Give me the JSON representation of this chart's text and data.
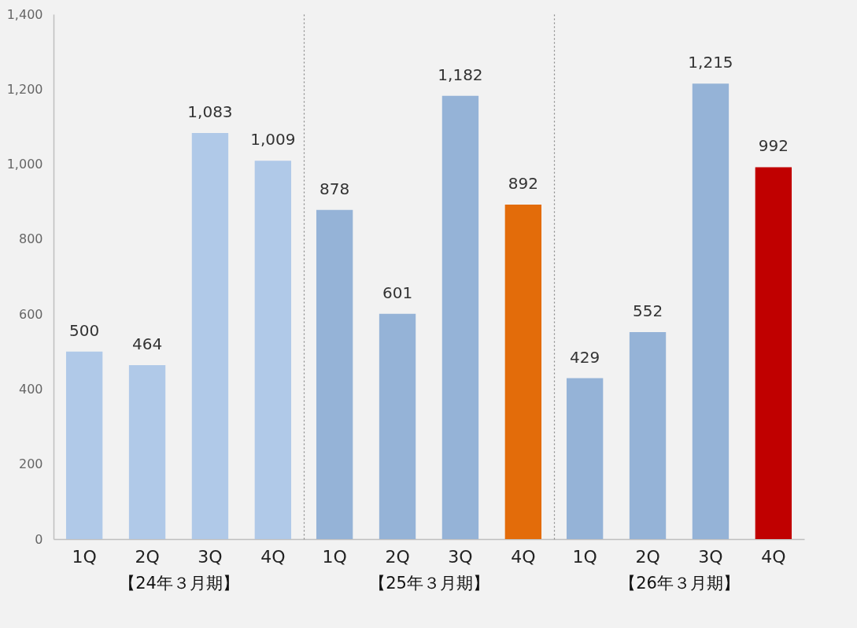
{
  "chart_data": [
    {
      "type": "bar",
      "xlabel": "【24年３月期】",
      "categories": [
        "1Q",
        "2Q",
        "3Q",
        "4Q"
      ],
      "values": [
        500,
        464,
        1083,
        1009
      ],
      "value_labels": [
        "500",
        "464",
        "1,083",
        "1,009"
      ],
      "colors": [
        "#b0c9e8",
        "#b0c9e8",
        "#b0c9e8",
        "#b0c9e8"
      ],
      "ylim": [
        0,
        1400
      ],
      "yticks": [
        0,
        {
          "value": 200,
          "label": "200"
        },
        {
          "value": 400,
          "label": "400"
        },
        {
          "value": 600,
          "label": "600"
        },
        {
          "value": 800,
          "label": "800"
        },
        {
          "value": 1000,
          "label": "1,000"
        },
        {
          "value": 1200,
          "label": "1,200"
        },
        {
          "value": 1400,
          "label": "1,400"
        }
      ],
      "grid": false
    },
    {
      "type": "bar",
      "xlabel": "【25年３月期】",
      "categories": [
        "1Q",
        "2Q",
        "3Q",
        "4Q"
      ],
      "values": [
        878,
        601,
        1182,
        892
      ],
      "value_labels": [
        "878",
        "601",
        "1,182",
        "892"
      ],
      "colors": [
        "#95b3d7",
        "#95b3d7",
        "#95b3d7",
        "#e36c0a"
      ],
      "ylim": [
        0,
        1400
      ],
      "grid": false,
      "tick_labels": "x"
    },
    {
      "type": "bar",
      "xlabel": "【26年３月期】",
      "categories": [
        "1Q",
        "2Q",
        "3Q",
        "4Q"
      ],
      "values": [
        429,
        552,
        1215,
        992
      ],
      "value_labels": [
        "429",
        "552",
        "1,215",
        "992"
      ],
      "colors": [
        "#95b3d7",
        "#95b3d7",
        "#95b3d7",
        "#c00000"
      ],
      "ylim": [
        0,
        1400
      ],
      "grid": false,
      "tick_labels": "x"
    }
  ]
}
